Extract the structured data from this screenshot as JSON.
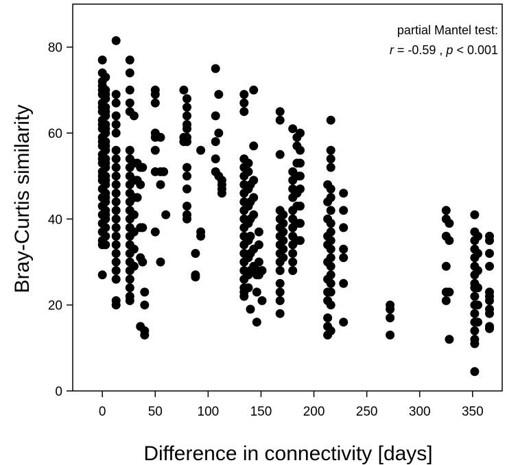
{
  "chart_data": {
    "type": "scatter",
    "xlabel": "Difference in connectivity [days]",
    "ylabel": "Bray-Curtis similarity",
    "xlim": [
      -28,
      378
    ],
    "ylim": [
      0,
      90
    ],
    "xticks": [
      "0",
      "50",
      "100",
      "150",
      "200",
      "250",
      "300",
      "350"
    ],
    "yticks": [
      "0",
      "20",
      "40",
      "60",
      "80"
    ],
    "grid": false,
    "annotation": {
      "line1": "partial Mantel test:",
      "r_symbol": "r",
      "r_text": " = -0.59 , ",
      "p_symbol": "p",
      "p_text": " < 0.001"
    },
    "marker_color": "#000000",
    "points": [
      [
        0,
        77
      ],
      [
        0,
        74
      ],
      [
        0,
        72
      ],
      [
        0,
        70
      ],
      [
        0,
        69
      ],
      [
        0,
        67
      ],
      [
        0,
        65
      ],
      [
        0,
        63
      ],
      [
        0,
        61
      ],
      [
        0,
        59
      ],
      [
        0,
        57
      ],
      [
        0,
        55
      ],
      [
        0,
        53
      ],
      [
        0,
        51
      ],
      [
        0,
        49
      ],
      [
        0,
        47
      ],
      [
        0,
        45
      ],
      [
        0,
        43
      ],
      [
        0,
        41
      ],
      [
        0,
        39
      ],
      [
        0,
        37
      ],
      [
        0,
        35
      ],
      [
        0,
        34
      ],
      [
        0,
        27
      ],
      [
        0,
        50
      ],
      [
        0,
        54
      ],
      [
        0,
        58
      ],
      [
        0,
        62
      ],
      [
        0,
        66
      ],
      [
        0,
        71
      ],
      [
        3,
        73
      ],
      [
        3,
        70
      ],
      [
        3,
        68
      ],
      [
        3,
        66
      ],
      [
        3,
        64
      ],
      [
        3,
        62
      ],
      [
        3,
        60
      ],
      [
        3,
        58
      ],
      [
        3,
        56
      ],
      [
        3,
        54
      ],
      [
        3,
        52
      ],
      [
        3,
        50
      ],
      [
        3,
        48
      ],
      [
        3,
        46
      ],
      [
        3,
        44
      ],
      [
        3,
        42
      ],
      [
        3,
        40
      ],
      [
        3,
        38
      ],
      [
        3,
        36
      ],
      [
        3,
        34
      ],
      [
        3,
        69
      ],
      [
        3,
        65
      ],
      [
        3,
        61
      ],
      [
        3,
        57
      ],
      [
        3,
        53
      ],
      [
        3,
        49
      ],
      [
        3,
        45
      ],
      [
        3,
        41
      ],
      [
        13,
        81.5
      ],
      [
        13,
        69
      ],
      [
        13,
        67
      ],
      [
        13,
        64
      ],
      [
        13,
        62
      ],
      [
        13,
        60
      ],
      [
        13,
        56
      ],
      [
        13,
        54
      ],
      [
        13,
        52
      ],
      [
        13,
        50
      ],
      [
        13,
        48
      ],
      [
        13,
        46
      ],
      [
        13,
        44
      ],
      [
        13,
        42
      ],
      [
        13,
        40
      ],
      [
        13,
        38
      ],
      [
        13,
        36
      ],
      [
        13,
        34
      ],
      [
        13,
        32
      ],
      [
        13,
        30
      ],
      [
        13,
        28
      ],
      [
        13,
        26
      ],
      [
        13,
        21
      ],
      [
        13,
        20
      ],
      [
        26,
        77
      ],
      [
        26,
        74
      ],
      [
        26,
        70
      ],
      [
        26,
        67
      ],
      [
        26,
        65
      ],
      [
        26,
        56
      ],
      [
        26,
        54
      ],
      [
        26,
        52
      ],
      [
        26,
        50
      ],
      [
        26,
        48
      ],
      [
        26,
        46
      ],
      [
        26,
        44
      ],
      [
        26,
        42
      ],
      [
        26,
        40
      ],
      [
        26,
        38
      ],
      [
        26,
        36
      ],
      [
        26,
        34
      ],
      [
        26,
        32
      ],
      [
        26,
        30
      ],
      [
        26,
        28
      ],
      [
        26,
        26
      ],
      [
        26,
        24
      ],
      [
        26,
        22
      ],
      [
        26,
        21
      ],
      [
        30,
        64
      ],
      [
        30,
        53
      ],
      [
        30,
        49
      ],
      [
        30,
        45
      ],
      [
        30,
        41
      ],
      [
        30,
        37
      ],
      [
        30,
        33
      ],
      [
        30,
        29
      ],
      [
        33,
        53
      ],
      [
        33,
        49
      ],
      [
        33,
        45
      ],
      [
        36,
        52
      ],
      [
        36,
        48
      ],
      [
        36,
        38
      ],
      [
        36,
        31
      ],
      [
        36,
        15
      ],
      [
        38,
        52
      ],
      [
        38,
        38
      ],
      [
        38,
        30
      ],
      [
        40,
        23
      ],
      [
        40,
        20
      ],
      [
        40,
        14
      ],
      [
        40,
        13
      ],
      [
        50,
        70
      ],
      [
        50,
        69
      ],
      [
        50,
        67
      ],
      [
        50,
        60
      ],
      [
        50,
        59
      ],
      [
        50,
        56
      ],
      [
        50,
        51
      ],
      [
        50,
        37
      ],
      [
        55,
        59
      ],
      [
        55,
        51
      ],
      [
        55,
        48
      ],
      [
        55,
        30
      ],
      [
        58,
        51
      ],
      [
        60,
        41
      ],
      [
        77,
        70
      ],
      [
        77,
        59
      ],
      [
        77,
        58
      ],
      [
        80,
        68
      ],
      [
        80,
        66
      ],
      [
        80,
        64
      ],
      [
        80,
        62
      ],
      [
        80,
        61
      ],
      [
        80,
        59
      ],
      [
        80,
        58
      ],
      [
        80,
        52
      ],
      [
        80,
        50
      ],
      [
        80,
        47
      ],
      [
        80,
        43
      ],
      [
        80,
        41
      ],
      [
        80,
        40
      ],
      [
        88,
        32
      ],
      [
        88,
        27
      ],
      [
        88,
        26.5
      ],
      [
        93,
        56
      ],
      [
        93,
        37
      ],
      [
        93,
        36
      ],
      [
        107,
        75
      ],
      [
        107,
        64
      ],
      [
        107,
        58
      ],
      [
        107,
        54
      ],
      [
        107,
        51
      ],
      [
        110,
        69
      ],
      [
        110,
        60
      ],
      [
        110,
        50
      ],
      [
        113,
        49
      ],
      [
        113,
        48
      ],
      [
        113,
        47
      ],
      [
        113,
        46
      ],
      [
        134,
        69
      ],
      [
        134,
        67
      ],
      [
        134,
        65
      ],
      [
        134,
        54
      ],
      [
        134,
        52
      ],
      [
        134,
        50
      ],
      [
        134,
        48
      ],
      [
        134,
        46
      ],
      [
        134,
        44
      ],
      [
        134,
        42
      ],
      [
        134,
        40
      ],
      [
        134,
        38
      ],
      [
        134,
        36
      ],
      [
        134,
        34
      ],
      [
        134,
        32
      ],
      [
        134,
        30
      ],
      [
        134,
        28
      ],
      [
        134,
        26
      ],
      [
        134,
        24
      ],
      [
        134,
        23
      ],
      [
        134,
        22
      ],
      [
        138,
        53
      ],
      [
        138,
        51
      ],
      [
        138,
        47
      ],
      [
        138,
        43
      ],
      [
        138,
        39
      ],
      [
        138,
        35
      ],
      [
        138,
        31
      ],
      [
        138,
        27
      ],
      [
        138,
        24
      ],
      [
        140,
        48
      ],
      [
        140,
        44
      ],
      [
        140,
        40
      ],
      [
        140,
        36
      ],
      [
        140,
        32
      ],
      [
        140,
        28
      ],
      [
        140,
        19
      ],
      [
        143,
        70
      ],
      [
        143,
        57
      ],
      [
        143,
        49
      ],
      [
        143,
        45
      ],
      [
        143,
        41
      ],
      [
        143,
        33
      ],
      [
        143,
        29
      ],
      [
        146,
        28
      ],
      [
        146,
        27
      ],
      [
        146,
        23
      ],
      [
        146,
        16
      ],
      [
        148,
        37
      ],
      [
        148,
        34
      ],
      [
        148,
        30
      ],
      [
        148,
        27
      ],
      [
        151,
        28
      ],
      [
        151,
        21
      ],
      [
        168,
        65
      ],
      [
        168,
        63
      ],
      [
        168,
        55
      ],
      [
        168,
        42
      ],
      [
        168,
        40
      ],
      [
        168,
        38
      ],
      [
        168,
        36
      ],
      [
        168,
        34
      ],
      [
        168,
        32
      ],
      [
        168,
        30
      ],
      [
        168,
        28
      ],
      [
        168,
        25
      ],
      [
        168,
        23
      ],
      [
        168,
        21
      ],
      [
        168,
        18
      ],
      [
        171,
        41
      ],
      [
        171,
        39
      ],
      [
        171,
        37
      ],
      [
        171,
        35
      ],
      [
        171,
        33
      ],
      [
        171,
        31
      ],
      [
        180,
        61
      ],
      [
        180,
        51
      ],
      [
        180,
        49
      ],
      [
        180,
        47
      ],
      [
        180,
        45
      ],
      [
        180,
        42
      ],
      [
        180,
        40
      ],
      [
        180,
        38
      ],
      [
        180,
        36
      ],
      [
        180,
        34
      ],
      [
        180,
        32
      ],
      [
        180,
        30
      ],
      [
        180,
        28
      ],
      [
        184,
        57
      ],
      [
        184,
        53
      ],
      [
        184,
        50
      ],
      [
        184,
        46
      ],
      [
        184,
        43
      ],
      [
        184,
        39
      ],
      [
        184,
        35
      ],
      [
        184,
        59
      ],
      [
        187,
        60
      ],
      [
        187,
        56
      ],
      [
        187,
        53
      ],
      [
        187,
        50
      ],
      [
        187,
        47
      ],
      [
        187,
        43
      ],
      [
        187,
        39
      ],
      [
        187,
        35
      ],
      [
        213,
        48
      ],
      [
        213,
        44
      ],
      [
        213,
        40
      ],
      [
        213,
        36
      ],
      [
        213,
        34
      ],
      [
        213,
        30
      ],
      [
        213,
        26
      ],
      [
        213,
        23
      ],
      [
        213,
        21
      ],
      [
        213,
        17
      ],
      [
        213,
        15
      ],
      [
        213,
        13
      ],
      [
        216,
        63
      ],
      [
        216,
        56
      ],
      [
        216,
        54
      ],
      [
        216,
        52
      ],
      [
        216,
        47
      ],
      [
        216,
        45
      ],
      [
        216,
        42
      ],
      [
        216,
        39
      ],
      [
        216,
        37
      ],
      [
        216,
        35
      ],
      [
        216,
        33
      ],
      [
        216,
        31
      ],
      [
        216,
        29
      ],
      [
        216,
        27
      ],
      [
        216,
        25
      ],
      [
        216,
        23
      ],
      [
        216,
        20
      ],
      [
        216,
        14
      ],
      [
        228,
        46
      ],
      [
        228,
        42
      ],
      [
        228,
        38
      ],
      [
        228,
        33
      ],
      [
        228,
        31
      ],
      [
        228,
        25
      ],
      [
        228,
        16
      ],
      [
        272,
        20
      ],
      [
        272,
        19
      ],
      [
        272,
        17
      ],
      [
        272,
        13
      ],
      [
        325,
        42
      ],
      [
        325,
        40
      ],
      [
        325,
        36
      ],
      [
        325,
        29
      ],
      [
        325,
        23
      ],
      [
        325,
        21
      ],
      [
        328,
        39
      ],
      [
        328,
        35
      ],
      [
        328,
        23
      ],
      [
        328,
        12
      ],
      [
        352,
        41
      ],
      [
        352,
        37
      ],
      [
        352,
        35
      ],
      [
        352,
        33
      ],
      [
        352,
        31
      ],
      [
        352,
        29
      ],
      [
        352,
        27
      ],
      [
        352,
        25
      ],
      [
        352,
        24
      ],
      [
        352,
        22
      ],
      [
        352,
        20
      ],
      [
        352,
        18
      ],
      [
        352,
        16
      ],
      [
        352,
        14
      ],
      [
        352,
        12
      ],
      [
        352,
        11
      ],
      [
        352,
        4.5
      ],
      [
        355,
        36
      ],
      [
        355,
        32
      ],
      [
        355,
        28
      ],
      [
        355,
        24
      ],
      [
        355,
        20
      ],
      [
        355,
        16
      ],
      [
        366,
        36
      ],
      [
        366,
        35
      ],
      [
        366,
        32
      ],
      [
        366,
        29
      ],
      [
        366,
        23
      ],
      [
        366,
        22
      ],
      [
        366,
        21
      ],
      [
        366,
        19
      ],
      [
        366,
        18
      ],
      [
        366,
        15
      ],
      [
        366,
        14.5
      ]
    ]
  }
}
